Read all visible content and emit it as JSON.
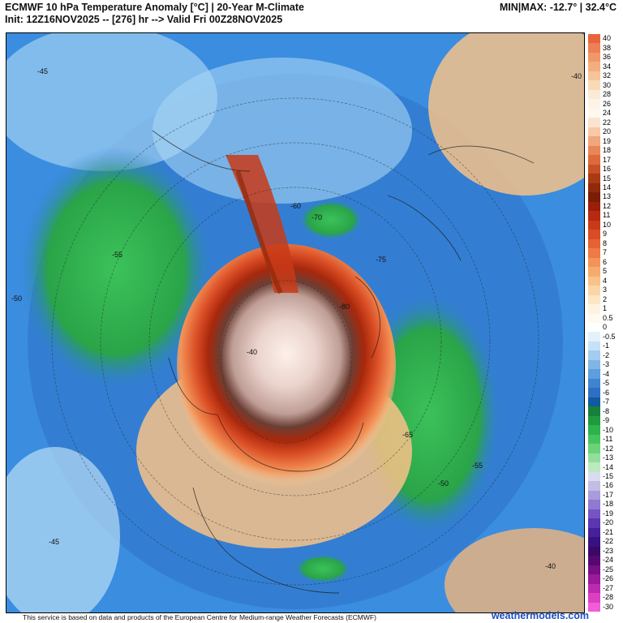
{
  "header": {
    "title_line1": "ECMWF 10 hPa Temperature Anomaly [°C] | 20-Year M-Climate",
    "title_line2": "Init: 12Z16NOV2025 -- [276] hr --> Valid Fri 00Z28NOV2025",
    "minmax": "MIN|MAX: -12.7° | 32.4°C"
  },
  "footer": {
    "credit": "This service is based on data and products of the European Centre for Medium-range Weather Forecasts (ECMWF)",
    "brand": "weathermodels.com"
  },
  "legend": {
    "labels": [
      "40",
      "38",
      "36",
      "34",
      "32",
      "30",
      "28",
      "26",
      "24",
      "22",
      "20",
      "19",
      "18",
      "17",
      "16",
      "15",
      "14",
      "13",
      "12",
      "11",
      "10",
      "9",
      "8",
      "7",
      "6",
      "5",
      "4",
      "3",
      "2",
      "1",
      "0.5",
      "0",
      "-0.5",
      "-1",
      "-2",
      "-3",
      "-4",
      "-5",
      "-6",
      "-7",
      "-8",
      "-9",
      "-10",
      "-11",
      "-12",
      "-13",
      "-14",
      "-15",
      "-16",
      "-17",
      "-18",
      "-19",
      "-20",
      "-21",
      "-22",
      "-23",
      "-24",
      "-25",
      "-26",
      "-27",
      "-28",
      "-30"
    ],
    "colors": [
      "#e8643c",
      "#ee8055",
      "#f09868",
      "#f3ae80",
      "#f5c49a",
      "#f8dbb6",
      "#faebd6",
      "#fdf3e6",
      "#fff8ee",
      "#fbe4cf",
      "#f8c9a8",
      "#f2a67d",
      "#e88657",
      "#de6a3c",
      "#c85026",
      "#a83a14",
      "#8f2a0c",
      "#7a1d06",
      "#9a1f0a",
      "#b52a10",
      "#c83a18",
      "#d94c24",
      "#e56234",
      "#ee7a46",
      "#f39358",
      "#f6ab6e",
      "#f8c288",
      "#fad6a6",
      "#fce6c4",
      "#fef2e0",
      "#fff9f0",
      "#ffffff",
      "#e4f1fb",
      "#c6e2f6",
      "#a3cdef",
      "#80b6e6",
      "#5e9edc",
      "#3f84cf",
      "#2e6fc4",
      "#0f5aa0",
      "#17803a",
      "#1f9a3e",
      "#2db34c",
      "#46c45c",
      "#6bd27a",
      "#94de9c",
      "#bde9bf",
      "#d9dcef",
      "#c3bde6",
      "#a99bdc",
      "#8f79d1",
      "#7555c3",
      "#5b36b0",
      "#46209a",
      "#3a1180",
      "#3b0868",
      "#55086f",
      "#780f84",
      "#9a1a99",
      "#bd2aae",
      "#dc3fc2",
      "#f05dd6"
    ]
  },
  "map": {
    "contour_labels": [
      {
        "text": "-45",
        "region": "nw"
      },
      {
        "text": "-50",
        "region": "w"
      },
      {
        "text": "-55",
        "region": "wc"
      },
      {
        "text": "-40",
        "region": "center"
      },
      {
        "text": "-60",
        "region": "ne"
      },
      {
        "text": "-70",
        "region": "ne"
      },
      {
        "text": "-75",
        "region": "e"
      },
      {
        "text": "-80",
        "region": "e"
      },
      {
        "text": "-65",
        "region": "e"
      },
      {
        "text": "-55",
        "region": "se"
      },
      {
        "text": "-50",
        "region": "s"
      },
      {
        "text": "-45",
        "region": "sw"
      },
      {
        "text": "-40",
        "region": "ne-corner"
      },
      {
        "text": "-40",
        "region": "se-corner"
      }
    ]
  }
}
